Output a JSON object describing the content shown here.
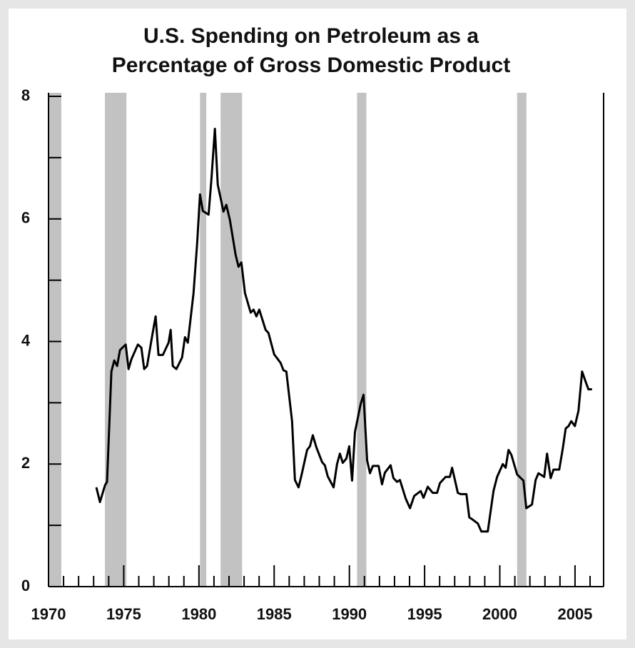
{
  "chart_data": {
    "type": "line",
    "title": [
      "U.S. Spending on Petroleum as a",
      "Percentage of Gross Domestic Product"
    ],
    "xlim": [
      1970,
      2006.9
    ],
    "xticks": [
      1970,
      1975,
      1980,
      1985,
      1990,
      1995,
      2000,
      2005
    ],
    "xminor_ticks": [
      1971,
      1972,
      1973,
      1974,
      1976,
      1977,
      1978,
      1979,
      1981,
      1982,
      1983,
      1984,
      1986,
      1987,
      1988,
      1989,
      1991,
      1992,
      1993,
      1994,
      1996,
      1997,
      1998,
      1999,
      2001,
      2002,
      2003,
      2004,
      2006
    ],
    "ylim": [
      0,
      8
    ],
    "yticks": [
      0,
      2,
      4,
      6,
      8
    ],
    "yminor_ticks": [
      1,
      3,
      5,
      7
    ],
    "shaded_bands": [
      [
        1970,
        1970.85
      ],
      [
        1973.75,
        1975.18
      ],
      [
        1980.07,
        1980.49
      ],
      [
        1981.44,
        1982.87
      ],
      [
        1990.51,
        1991.13
      ],
      [
        2001.15,
        2001.77
      ]
    ],
    "band_color": "#c2c2c2",
    "series": [
      {
        "color": "#000000",
        "x": [
          1973.18,
          1973.42,
          1973.75,
          1973.89,
          1974.18,
          1974.37,
          1974.56,
          1974.75,
          1975.13,
          1975.32,
          1975.51,
          1975.94,
          1976.17,
          1976.36,
          1976.55,
          1976.89,
          1977.12,
          1977.31,
          1977.6,
          1977.98,
          1978.12,
          1978.26,
          1978.5,
          1978.88,
          1979.07,
          1979.26,
          1979.64,
          1979.88,
          1980.07,
          1980.26,
          1980.64,
          1980.83,
          1981.06,
          1981.25,
          1981.63,
          1981.82,
          1982.06,
          1982.44,
          1982.63,
          1982.82,
          1983.06,
          1983.44,
          1983.63,
          1983.82,
          1984.01,
          1984.43,
          1984.62,
          1985.0,
          1985.43,
          1985.62,
          1985.81,
          1986.19,
          1986.38,
          1986.62,
          1986.81,
          1987.19,
          1987.38,
          1987.57,
          1987.81,
          1988.19,
          1988.37,
          1988.56,
          1988.95,
          1989.18,
          1989.37,
          1989.56,
          1989.8,
          1989.99,
          1990.18,
          1990.37,
          1990.75,
          1990.94,
          1991.18,
          1991.37,
          1991.56,
          1991.94,
          1992.17,
          1992.36,
          1992.74,
          1992.93,
          1993.17,
          1993.36,
          1993.74,
          1994.03,
          1994.31,
          1994.74,
          1994.93,
          1995.21,
          1995.54,
          1995.83,
          1996.02,
          1996.4,
          1996.68,
          1996.83,
          1997.21,
          1997.4,
          1997.78,
          1997.97,
          1998.16,
          1998.54,
          1998.77,
          1999.2,
          1999.58,
          1999.82,
          2000.2,
          2000.39,
          2000.58,
          2000.77,
          2001.15,
          2001.57,
          2001.76,
          2002.14,
          2002.38,
          2002.57,
          2002.95,
          2003.14,
          2003.38,
          2003.57,
          2003.95,
          2004.19,
          2004.38,
          2004.57,
          2004.75,
          2004.99,
          2005.23,
          2005.47,
          2005.71,
          2005.89,
          2006.13
        ],
        "values": [
          1.62,
          1.38,
          1.65,
          1.71,
          3.51,
          3.69,
          3.6,
          3.86,
          3.95,
          3.55,
          3.71,
          3.95,
          3.9,
          3.55,
          3.6,
          4.09,
          4.41,
          3.78,
          3.78,
          3.98,
          4.19,
          3.6,
          3.55,
          3.74,
          4.07,
          3.98,
          4.79,
          5.6,
          6.4,
          6.13,
          6.07,
          6.65,
          7.47,
          6.56,
          6.12,
          6.23,
          5.98,
          5.41,
          5.22,
          5.29,
          4.79,
          4.47,
          4.52,
          4.41,
          4.52,
          4.19,
          4.14,
          3.79,
          3.65,
          3.53,
          3.51,
          2.7,
          1.74,
          1.62,
          1.81,
          2.23,
          2.29,
          2.47,
          2.27,
          2.03,
          1.98,
          1.8,
          1.62,
          2.0,
          2.17,
          2.02,
          2.09,
          2.29,
          1.73,
          2.52,
          2.98,
          3.13,
          2.06,
          1.85,
          1.97,
          1.97,
          1.67,
          1.86,
          1.98,
          1.77,
          1.71,
          1.74,
          1.44,
          1.28,
          1.48,
          1.56,
          1.45,
          1.63,
          1.53,
          1.53,
          1.69,
          1.79,
          1.79,
          1.94,
          1.53,
          1.51,
          1.51,
          1.13,
          1.1,
          1.03,
          0.9,
          0.9,
          1.56,
          1.79,
          2.0,
          1.94,
          2.23,
          2.15,
          1.83,
          1.73,
          1.28,
          1.34,
          1.74,
          1.85,
          1.79,
          2.17,
          1.77,
          1.91,
          1.91,
          2.26,
          2.58,
          2.62,
          2.7,
          2.62,
          2.87,
          3.51,
          3.34,
          3.22,
          3.22
        ]
      }
    ]
  }
}
